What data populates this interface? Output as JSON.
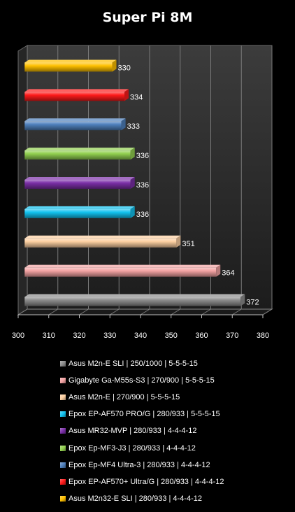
{
  "chart_data": {
    "type": "bar",
    "title": "Super Pi 8M",
    "xlabel": "",
    "ylabel": "",
    "xlim": [
      300,
      380
    ],
    "ticks": [
      300,
      310,
      320,
      330,
      340,
      350,
      360,
      370,
      380
    ],
    "grid": true,
    "orientation": "horizontal",
    "legend_position": "bottom",
    "series": [
      {
        "name": "Asus M2n-E SLI  | 250/1000  |  5-5-5-15",
        "value": 372,
        "label": "372",
        "color": "#8c8c8c"
      },
      {
        "name": "Gigabyte Ga-M55s-S3  |  270/900  |  5-5-5-15",
        "value": 364,
        "label": "364",
        "color": "#f4a3a3"
      },
      {
        "name": "Asus M2n-E  |  270/900  |  5-5-5-15",
        "value": 351,
        "label": "351",
        "color": "#fdd0a2"
      },
      {
        "name": "Epox EP-AF570 PRO/G  |  280/933  |  5-5-5-15",
        "value": 336,
        "label": "336",
        "color": "#12c3f0"
      },
      {
        "name": "Asus MR32-MVP  |  280/933  |  4-4-4-12",
        "value": 336,
        "label": "336",
        "color": "#7b2fa8"
      },
      {
        "name": "Epox Ep-MF3-J3  |  280/933  |  4-4-4-12",
        "value": 336,
        "label": "336",
        "color": "#92d050"
      },
      {
        "name": "Epox Ep-MF4  Ultra-3  |  280/933  |  4-4-4-12",
        "value": 333,
        "label": "333",
        "color": "#4f81bd"
      },
      {
        "name": "Epox EP-AF570+ Ultra/G  |  280/933  |  4-4-4-12",
        "value": 334,
        "label": "334",
        "color": "#ff1a1a"
      },
      {
        "name": "Asus M2n32-E SLI   |  280/933  |  4-4-4-12",
        "value": 330,
        "label": "330",
        "color": "#ffc000"
      }
    ]
  }
}
